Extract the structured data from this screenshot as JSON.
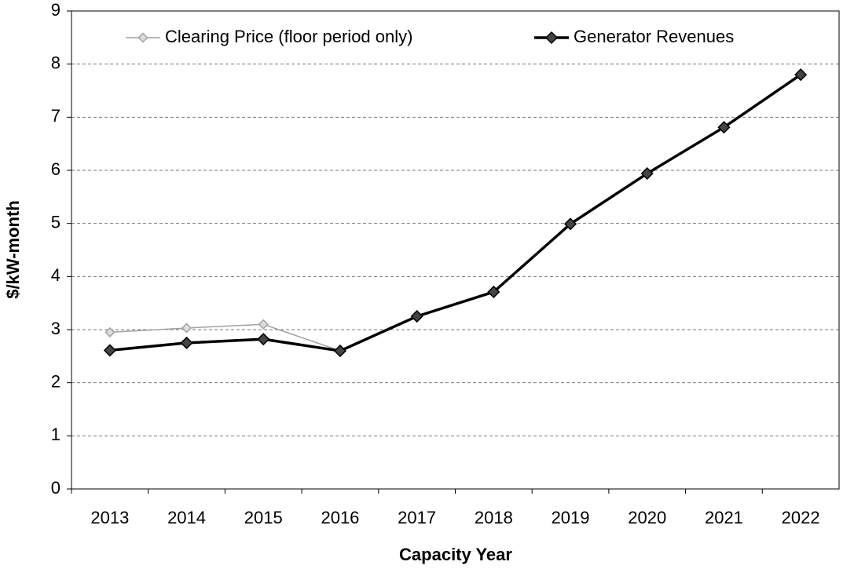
{
  "chart_data": {
    "type": "line",
    "x_label": "Capacity Year",
    "y_label": "$/kW-month",
    "categories": [
      "2013",
      "2014",
      "2015",
      "2016",
      "2017",
      "2018",
      "2019",
      "2020",
      "2021",
      "2022"
    ],
    "series": [
      {
        "name": "Clearing Price (floor period only)",
        "color": "#a0a0a0",
        "values": [
          2.95,
          3.03,
          3.1,
          2.6,
          null,
          null,
          null,
          null,
          null,
          null
        ]
      },
      {
        "name": "Generator Revenues",
        "color": "#000000",
        "values": [
          2.61,
          2.75,
          2.82,
          2.6,
          3.25,
          3.71,
          4.99,
          5.94,
          6.81,
          7.8
        ]
      }
    ],
    "ylim": [
      0,
      9
    ],
    "yticks": [
      0,
      1,
      2,
      3,
      4,
      5,
      6,
      7,
      8,
      9
    ],
    "grid": true,
    "legend_position": "top"
  }
}
